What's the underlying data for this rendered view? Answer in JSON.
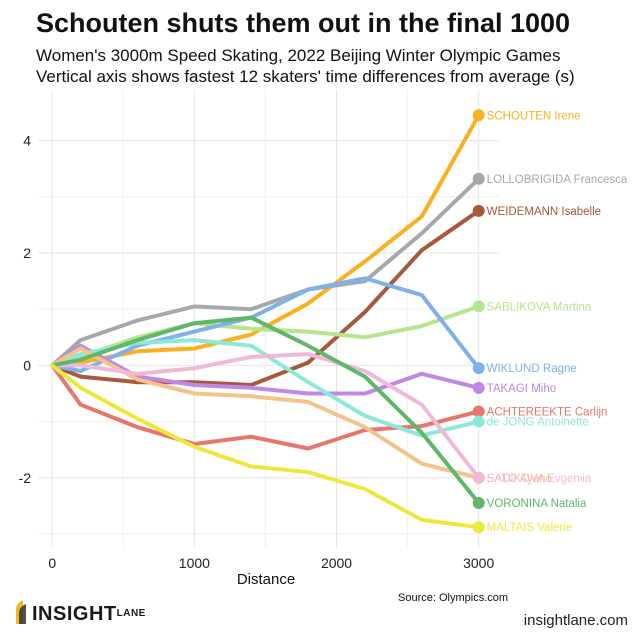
{
  "header": {
    "title": "Schouten shuts them out in the final 1000",
    "subtitle_line1": "Women's 3000m Speed Skating, 2022 Beijing Winter Olympic Games",
    "subtitle_line2": "Vertical axis shows fastest 12 skaters' time differences from average (s)"
  },
  "footer": {
    "source": "Source: Olympics.com",
    "logo_main": "INSIGHT",
    "logo_sup": "LANE",
    "site": "insightlane.com"
  },
  "chart_data": {
    "type": "line",
    "xlabel": "Distance",
    "ylabel": "",
    "xlim": [
      -100,
      3150
    ],
    "ylim": [
      -3.25,
      4.9
    ],
    "xticks": [
      0,
      1000,
      2000,
      3000
    ],
    "yticks": [
      -2,
      0,
      2,
      4
    ],
    "xtick_labels": [
      "0",
      "1000",
      "2000",
      "3000"
    ],
    "ytick_labels": [
      "-2",
      "0",
      "2",
      "4"
    ],
    "grid": true,
    "legend": "direct labels at line ends",
    "x": [
      0,
      200,
      600,
      1000,
      1400,
      1800,
      2200,
      2600,
      3000
    ],
    "series": [
      {
        "name": "SCHOUTEN Irene",
        "color": "#f9b122",
        "values": [
          0,
          0.05,
          0.25,
          0.3,
          0.55,
          1.1,
          1.85,
          2.65,
          4.45
        ]
      },
      {
        "name": "LOLLOBRIGIDA Francesca",
        "color": "#a6a9ab",
        "values": [
          0,
          0.45,
          0.8,
          1.05,
          1.0,
          1.35,
          1.5,
          2.35,
          3.32
        ]
      },
      {
        "name": "WEIDEMANN Isabelle",
        "color": "#a65a3c",
        "values": [
          0,
          -0.2,
          -0.3,
          -0.3,
          -0.35,
          0.05,
          0.95,
          2.05,
          2.75
        ]
      },
      {
        "name": "SABLIKOVA Martina",
        "color": "#b5e58f",
        "values": [
          0,
          0.15,
          0.5,
          0.75,
          0.65,
          0.6,
          0.5,
          0.7,
          1.05
        ]
      },
      {
        "name": "WIKLUND Ragne",
        "color": "#7fb1ea",
        "values": [
          0,
          -0.1,
          0.35,
          0.6,
          0.85,
          1.35,
          1.55,
          1.25,
          -0.05
        ]
      },
      {
        "name": "TAKAGI Miho",
        "color": "#c187e8",
        "values": [
          0,
          0.35,
          -0.2,
          -0.35,
          -0.4,
          -0.5,
          -0.5,
          -0.15,
          -0.4
        ]
      },
      {
        "name": "ACHTEREEKTE Carlijn",
        "color": "#e8766a",
        "values": [
          0,
          -0.7,
          -1.1,
          -1.4,
          -1.27,
          -1.48,
          -1.15,
          -1.08,
          -0.82
        ]
      },
      {
        "name": "de JONG Antoinette",
        "color": "#8de8d8",
        "values": [
          0,
          0.2,
          0.4,
          0.45,
          0.35,
          -0.3,
          -0.9,
          -1.25,
          -1.0
        ]
      },
      {
        "name": "SATO Ayano",
        "color": "#f5c28a",
        "values": [
          0,
          0.3,
          -0.25,
          -0.5,
          -0.55,
          -0.65,
          -1.1,
          -1.75,
          -2.0
        ]
      },
      {
        "name": "SADIKOVA Evgeniia",
        "color": "#f0b8da",
        "values": [
          0,
          0.0,
          -0.15,
          -0.05,
          0.15,
          0.2,
          -0.1,
          -0.7,
          -2.0
        ]
      },
      {
        "name": "VORONINA Natalia",
        "color": "#5db86a",
        "values": [
          0,
          0.1,
          0.45,
          0.75,
          0.85,
          0.35,
          -0.2,
          -1.2,
          -2.45
        ]
      },
      {
        "name": "MALTAIS Valerie",
        "color": "#eee83e",
        "values": [
          0,
          -0.4,
          -0.95,
          -1.45,
          -1.8,
          -1.9,
          -2.2,
          -2.75,
          -2.88
        ]
      }
    ]
  }
}
